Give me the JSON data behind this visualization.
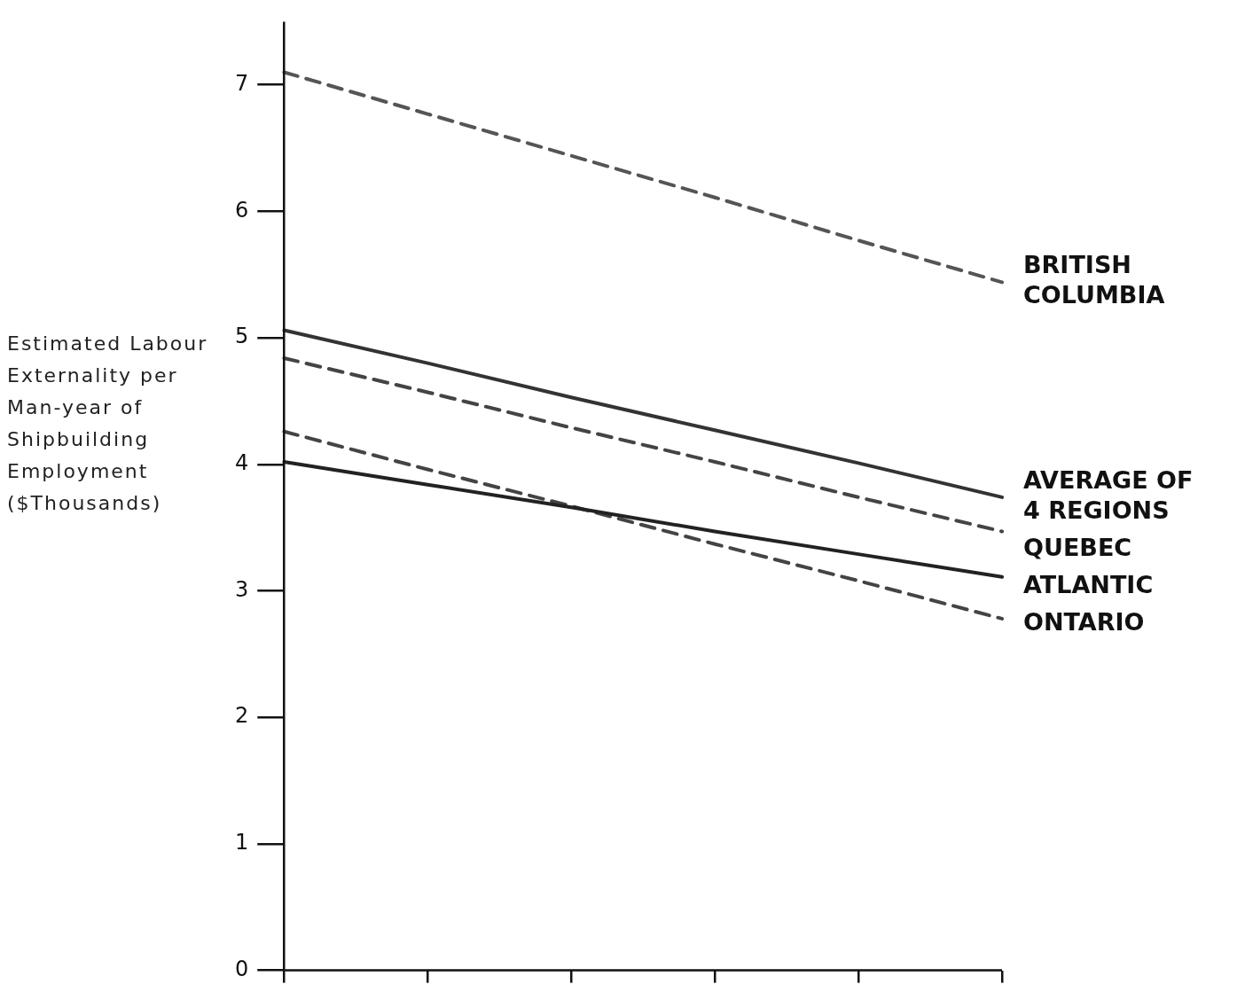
{
  "chart_data": {
    "type": "line",
    "ylabel": "Estimated Labour Externality per Man-year of Shipbuilding Employment ($Thousands)",
    "categories": [
      null,
      null,
      null,
      null,
      null,
      null
    ],
    "ylim": [
      0,
      7.5
    ],
    "yticks": [
      0,
      1,
      2,
      3,
      4,
      5,
      6,
      7
    ],
    "grid": false,
    "legend": false,
    "tick_labels": "y",
    "marker": "none",
    "series": [
      {
        "name": "BRITISH COLUMBIA",
        "color": "#555555",
        "line_style": "dashed",
        "values": [
          7.1,
          6.77,
          6.44,
          6.11,
          5.77,
          5.44
        ]
      },
      {
        "name": "AVERAGE OF 4 REGIONS",
        "color": "#333333",
        "line_style": "solid",
        "values": [
          5.06,
          4.8,
          4.53,
          4.27,
          4.01,
          3.74
        ]
      },
      {
        "name": "QUEBEC",
        "color": "#444444",
        "line_style": "dashed",
        "values": [
          4.84,
          4.57,
          4.29,
          4.02,
          3.74,
          3.47
        ]
      },
      {
        "name": "ATLANTIC",
        "color": "#222222",
        "line_style": "solid",
        "values": [
          4.02,
          3.84,
          3.66,
          3.47,
          3.29,
          3.11
        ]
      },
      {
        "name": "ONTARIO",
        "color": "#444444",
        "line_style": "dashed",
        "values": [
          4.26,
          3.96,
          3.67,
          3.37,
          3.08,
          2.78
        ]
      }
    ]
  }
}
